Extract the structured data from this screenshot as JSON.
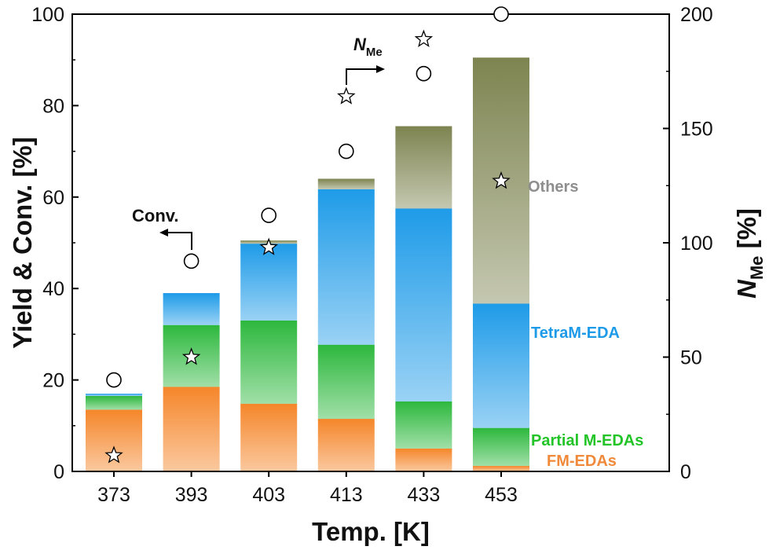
{
  "chart_data": {
    "type": "bar",
    "categories": [
      "373",
      "393",
      "403",
      "413",
      "433",
      "453"
    ],
    "xlabel": "Temp. [K]",
    "ylabel_left": "Yield & Conv. [%]",
    "ylabel_right_main": "N",
    "ylabel_right_sub": "Me",
    "ylabel_right_tail": " [%]",
    "ylim_left": [
      0,
      100
    ],
    "ylim_right": [
      0,
      200
    ],
    "yticks_left": [
      "0",
      "20",
      "40",
      "60",
      "80",
      "100"
    ],
    "yticks_right": [
      "0",
      "50",
      "100",
      "150",
      "200"
    ],
    "stacked_series": [
      {
        "name": "FM-EDAs",
        "color": "#f5862a",
        "values": [
          13.5,
          18.5,
          14.8,
          11.5,
          5.0,
          1.2
        ]
      },
      {
        "name": "Partial M-EDAs",
        "color": "#2db83d",
        "values": [
          3.0,
          13.5,
          18.2,
          16.2,
          10.3,
          8.3
        ]
      },
      {
        "name": "TetraM-EDA",
        "color": "#1e9be8",
        "values": [
          0.5,
          7.0,
          16.8,
          34.0,
          42.2,
          27.2
        ]
      },
      {
        "name": "Others",
        "color": "#7d8450",
        "values": [
          0,
          0,
          0.7,
          2.3,
          18.0,
          53.8
        ]
      }
    ],
    "conversion": {
      "label": "Conv.",
      "axis": "left",
      "marker": "circle",
      "values": [
        20,
        46,
        56,
        70,
        87,
        100
      ]
    },
    "n_me": {
      "label_main": "N",
      "label_sub": "Me",
      "axis": "right",
      "marker": "star",
      "values": [
        7,
        50,
        98,
        164,
        189,
        127
      ]
    },
    "series_labels": [
      {
        "text": "Others",
        "color": "#8e8e8e"
      },
      {
        "text": "TetraM-EDA",
        "color": "#1e9be8"
      },
      {
        "text": "Partial M-EDAs",
        "color": "#22c427"
      },
      {
        "text": "FM-EDAs",
        "color": "#f08a3a"
      }
    ],
    "grid": false,
    "legend": "none"
  }
}
